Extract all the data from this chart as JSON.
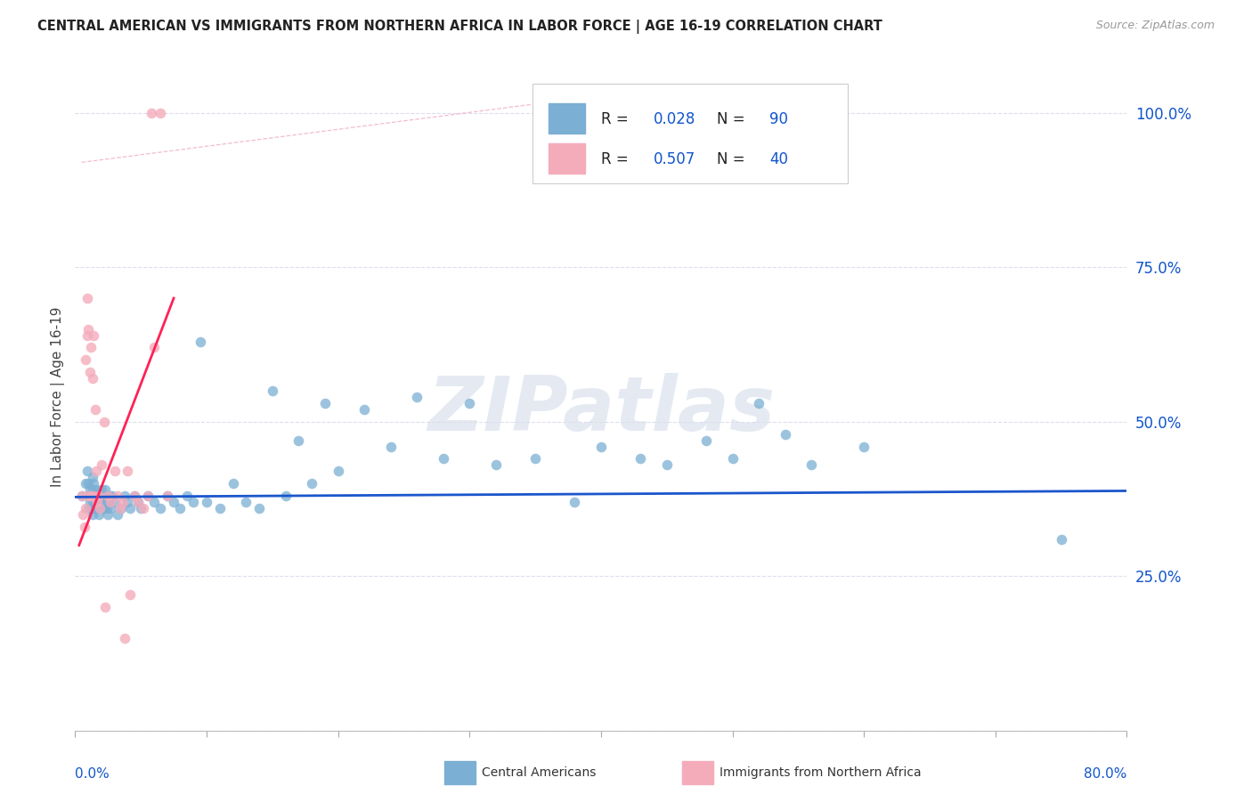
{
  "title": "CENTRAL AMERICAN VS IMMIGRANTS FROM NORTHERN AFRICA IN LABOR FORCE | AGE 16-19 CORRELATION CHART",
  "source": "Source: ZipAtlas.com",
  "ylabel": "In Labor Force | Age 16-19",
  "xlim": [
    0.0,
    0.8
  ],
  "ylim": [
    0.0,
    1.08
  ],
  "yticks": [
    0.0,
    0.25,
    0.5,
    0.75,
    1.0
  ],
  "ytick_labels": [
    "",
    "25.0%",
    "50.0%",
    "75.0%",
    "100.0%"
  ],
  "xtick_positions": [
    0.0,
    0.1,
    0.2,
    0.3,
    0.4,
    0.5,
    0.6,
    0.7,
    0.8
  ],
  "blue_color": "#7BAFD4",
  "pink_color": "#F4ACBB",
  "trend_blue_color": "#1A56CC",
  "trend_pink_color": "#FF2255",
  "ref_line_color": "#DDBBCC",
  "watermark_color": "#AABBD4",
  "grid_color": "#DDDDEE",
  "blue_dots_x": [
    0.005,
    0.008,
    0.009,
    0.01,
    0.01,
    0.01,
    0.011,
    0.011,
    0.012,
    0.012,
    0.013,
    0.013,
    0.013,
    0.013,
    0.014,
    0.014,
    0.014,
    0.015,
    0.015,
    0.015,
    0.016,
    0.016,
    0.016,
    0.017,
    0.017,
    0.018,
    0.018,
    0.019,
    0.02,
    0.02,
    0.021,
    0.022,
    0.022,
    0.023,
    0.023,
    0.024,
    0.024,
    0.025,
    0.025,
    0.026,
    0.026,
    0.027,
    0.028,
    0.03,
    0.032,
    0.035,
    0.038,
    0.04,
    0.042,
    0.045,
    0.048,
    0.05,
    0.055,
    0.06,
    0.065,
    0.07,
    0.075,
    0.08,
    0.085,
    0.09,
    0.095,
    0.1,
    0.11,
    0.12,
    0.13,
    0.14,
    0.15,
    0.16,
    0.17,
    0.18,
    0.19,
    0.2,
    0.22,
    0.24,
    0.26,
    0.28,
    0.3,
    0.32,
    0.35,
    0.38,
    0.4,
    0.43,
    0.45,
    0.48,
    0.5,
    0.52,
    0.54,
    0.56,
    0.6,
    0.75
  ],
  "blue_dots_y": [
    0.38,
    0.4,
    0.42,
    0.36,
    0.38,
    0.4,
    0.37,
    0.39,
    0.36,
    0.38,
    0.35,
    0.37,
    0.39,
    0.41,
    0.36,
    0.38,
    0.4,
    0.37,
    0.36,
    0.38,
    0.36,
    0.37,
    0.39,
    0.36,
    0.38,
    0.37,
    0.35,
    0.38,
    0.36,
    0.39,
    0.37,
    0.36,
    0.38,
    0.37,
    0.39,
    0.36,
    0.38,
    0.37,
    0.35,
    0.38,
    0.37,
    0.36,
    0.38,
    0.37,
    0.35,
    0.36,
    0.38,
    0.37,
    0.36,
    0.38,
    0.37,
    0.36,
    0.38,
    0.37,
    0.36,
    0.38,
    0.37,
    0.36,
    0.38,
    0.37,
    0.63,
    0.37,
    0.36,
    0.4,
    0.37,
    0.36,
    0.55,
    0.38,
    0.47,
    0.4,
    0.53,
    0.42,
    0.52,
    0.46,
    0.54,
    0.44,
    0.53,
    0.43,
    0.44,
    0.37,
    0.46,
    0.44,
    0.43,
    0.47,
    0.44,
    0.53,
    0.48,
    0.43,
    0.46,
    0.31
  ],
  "pink_dots_x": [
    0.005,
    0.006,
    0.007,
    0.008,
    0.008,
    0.009,
    0.009,
    0.01,
    0.01,
    0.011,
    0.012,
    0.012,
    0.013,
    0.013,
    0.014,
    0.015,
    0.016,
    0.017,
    0.018,
    0.019,
    0.02,
    0.022,
    0.023,
    0.025,
    0.027,
    0.03,
    0.032,
    0.034,
    0.036,
    0.038,
    0.04,
    0.042,
    0.045,
    0.048,
    0.052,
    0.055,
    0.058,
    0.06,
    0.065,
    0.07
  ],
  "pink_dots_y": [
    0.38,
    0.35,
    0.33,
    0.36,
    0.6,
    0.64,
    0.7,
    0.38,
    0.65,
    0.58,
    0.38,
    0.62,
    0.57,
    0.38,
    0.64,
    0.52,
    0.42,
    0.37,
    0.38,
    0.36,
    0.43,
    0.5,
    0.2,
    0.38,
    0.37,
    0.42,
    0.38,
    0.36,
    0.37,
    0.15,
    0.42,
    0.22,
    0.38,
    0.37,
    0.36,
    0.38,
    1.0,
    0.62,
    1.0,
    0.38
  ],
  "blue_trend_x": [
    0.0,
    0.8
  ],
  "blue_trend_y": [
    0.378,
    0.388
  ],
  "pink_trend_x": [
    0.003,
    0.075
  ],
  "pink_trend_y": [
    0.3,
    0.7
  ],
  "ref_line_x1": 0.005,
  "ref_line_y1": 0.92,
  "ref_line_x2": 0.37,
  "ref_line_y2": 1.02,
  "legend_blue_R": "R = 0.028",
  "legend_blue_N": "N = 90",
  "legend_pink_R": "R = 0.507",
  "legend_pink_N": "N = 40",
  "legend_label_blue": "Central Americans",
  "legend_label_pink": "Immigrants from Northern Africa",
  "r_color": "#1155CC",
  "n_color": "#1155CC",
  "source_text": "Source: ZipAtlas.com"
}
